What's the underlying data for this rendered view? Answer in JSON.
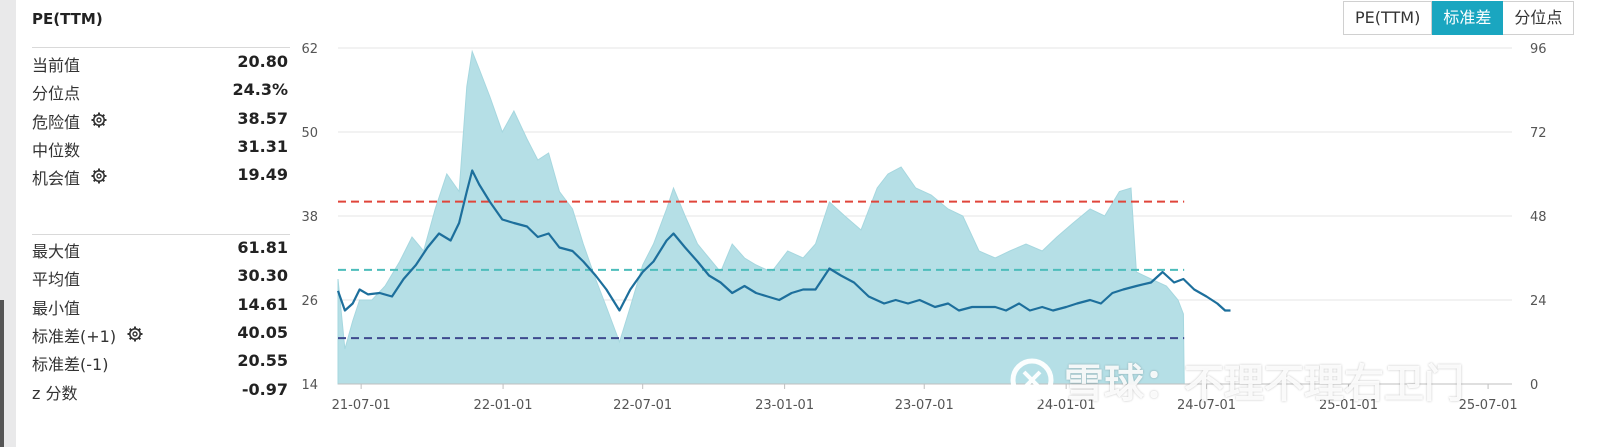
{
  "panel": {
    "title": "PE(TTM)",
    "group1": [
      {
        "label": "当前值",
        "value": "20.80",
        "gear": false
      },
      {
        "label": "分位点",
        "value": "24.3%",
        "gear": false
      },
      {
        "label": "危险值",
        "value": "38.57",
        "gear": true
      },
      {
        "label": "中位数",
        "value": "31.31",
        "gear": false
      },
      {
        "label": "机会值",
        "value": "19.49",
        "gear": true
      }
    ],
    "group2": [
      {
        "label": "最大值",
        "value": "61.81",
        "gear": false
      },
      {
        "label": "平均值",
        "value": "30.30",
        "gear": false
      },
      {
        "label": "最小值",
        "value": "14.61",
        "gear": false
      },
      {
        "label": "标准差(+1)",
        "value": "40.05",
        "gear": true
      },
      {
        "label": "标准差(-1)",
        "value": "20.55",
        "gear": false
      },
      {
        "label": "z 分数",
        "value": "-0.97",
        "gear": false
      }
    ]
  },
  "buttons": [
    {
      "label": "PE(TTM)",
      "active": false
    },
    {
      "label": "标准差",
      "active": true
    },
    {
      "label": "分位点",
      "active": false
    }
  ],
  "watermark": "雪球：不理不理右卫门",
  "chart_data": {
    "type": "line",
    "title": "",
    "x_ticks": [
      "21-07-01",
      "22-01-01",
      "22-07-01",
      "23-01-01",
      "23-07-01",
      "24-01-01",
      "24-07-01",
      "25-01-01",
      "25-07-01"
    ],
    "x_range": [
      "2021-06-01",
      "2025-08-01"
    ],
    "y_left": {
      "ticks": [
        14,
        26,
        38,
        50,
        62
      ],
      "range": [
        14,
        62
      ]
    },
    "y_right": {
      "ticks": [
        0,
        24,
        48,
        72,
        96
      ],
      "range": [
        0,
        96
      ]
    },
    "series": [
      {
        "name": "PE(TTM)",
        "axis": "left",
        "color": "#1d6f9c",
        "points": [
          [
            "2021-06-01",
            27.3
          ],
          [
            "2021-06-10",
            24.5
          ],
          [
            "2021-06-20",
            25.5
          ],
          [
            "2021-06-29",
            27.5
          ],
          [
            "2021-07-10",
            26.8
          ],
          [
            "2021-07-25",
            27.0
          ],
          [
            "2021-08-10",
            26.5
          ],
          [
            "2021-08-25",
            29.0
          ],
          [
            "2021-09-10",
            31.0
          ],
          [
            "2021-09-25",
            33.5
          ],
          [
            "2021-10-10",
            35.5
          ],
          [
            "2021-10-25",
            34.5
          ],
          [
            "2021-11-05",
            37.0
          ],
          [
            "2021-11-15",
            41.5
          ],
          [
            "2021-11-22",
            44.5
          ],
          [
            "2021-12-01",
            42.5
          ],
          [
            "2021-12-15",
            40.0
          ],
          [
            "2021-12-31",
            37.5
          ],
          [
            "2022-01-15",
            37.0
          ],
          [
            "2022-02-01",
            36.5
          ],
          [
            "2022-02-15",
            35.0
          ],
          [
            "2022-03-01",
            35.5
          ],
          [
            "2022-03-15",
            33.5
          ],
          [
            "2022-04-01",
            33.0
          ],
          [
            "2022-04-15",
            31.5
          ],
          [
            "2022-05-01",
            29.5
          ],
          [
            "2022-05-15",
            27.5
          ],
          [
            "2022-06-01",
            24.5
          ],
          [
            "2022-06-15",
            27.5
          ],
          [
            "2022-07-01",
            30.0
          ],
          [
            "2022-07-15",
            31.5
          ],
          [
            "2022-08-01",
            34.5
          ],
          [
            "2022-08-10",
            35.5
          ],
          [
            "2022-08-25",
            33.5
          ],
          [
            "2022-09-10",
            31.5
          ],
          [
            "2022-09-25",
            29.5
          ],
          [
            "2022-10-10",
            28.5
          ],
          [
            "2022-10-25",
            27.0
          ],
          [
            "2022-11-10",
            28.0
          ],
          [
            "2022-11-25",
            27.0
          ],
          [
            "2022-12-10",
            26.5
          ],
          [
            "2022-12-25",
            26.0
          ],
          [
            "2023-01-10",
            27.0
          ],
          [
            "2023-01-25",
            27.5
          ],
          [
            "2023-02-10",
            27.5
          ],
          [
            "2023-02-28",
            30.5
          ],
          [
            "2023-03-15",
            29.5
          ],
          [
            "2023-04-01",
            28.5
          ],
          [
            "2023-04-20",
            26.5
          ],
          [
            "2023-05-10",
            25.5
          ],
          [
            "2023-05-25",
            26.0
          ],
          [
            "2023-06-10",
            25.5
          ],
          [
            "2023-06-25",
            26.0
          ],
          [
            "2023-07-15",
            25.0
          ],
          [
            "2023-08-01",
            25.5
          ],
          [
            "2023-08-15",
            24.5
          ],
          [
            "2023-09-01",
            25.0
          ],
          [
            "2023-09-15",
            25.0
          ],
          [
            "2023-10-01",
            25.0
          ],
          [
            "2023-10-15",
            24.5
          ],
          [
            "2023-11-01",
            25.5
          ],
          [
            "2023-11-15",
            24.5
          ],
          [
            "2023-12-01",
            25.0
          ],
          [
            "2023-12-15",
            24.5
          ],
          [
            "2024-01-01",
            25.0
          ],
          [
            "2024-01-15",
            25.5
          ],
          [
            "2024-02-01",
            26.0
          ],
          [
            "2024-02-15",
            25.5
          ],
          [
            "2024-03-01",
            27.0
          ],
          [
            "2024-03-15",
            27.5
          ],
          [
            "2024-04-01",
            28.0
          ],
          [
            "2024-04-20",
            28.5
          ],
          [
            "2024-05-05",
            30.0
          ],
          [
            "2024-05-20",
            28.5
          ],
          [
            "2024-06-01",
            29.0
          ],
          [
            "2024-06-15",
            27.5
          ],
          [
            "2024-07-01",
            26.5
          ],
          [
            "2024-07-15",
            25.5
          ],
          [
            "2024-07-25",
            24.5
          ],
          [
            "2024-08-01",
            24.5
          ]
        ]
      },
      {
        "name": "",
        "axis": "right",
        "type": "area",
        "color": "#b5dfe6",
        "points": [
          [
            "2021-06-01",
            30
          ],
          [
            "2021-06-10",
            10
          ],
          [
            "2021-06-20",
            18
          ],
          [
            "2021-06-29",
            24
          ],
          [
            "2021-07-15",
            24
          ],
          [
            "2021-08-01",
            28
          ],
          [
            "2021-08-20",
            35
          ],
          [
            "2021-09-05",
            42
          ],
          [
            "2021-09-20",
            38
          ],
          [
            "2021-10-05",
            50
          ],
          [
            "2021-10-20",
            60
          ],
          [
            "2021-11-05",
            55
          ],
          [
            "2021-11-15",
            85
          ],
          [
            "2021-11-22",
            95
          ],
          [
            "2021-12-01",
            90
          ],
          [
            "2021-12-15",
            82
          ],
          [
            "2021-12-31",
            72
          ],
          [
            "2022-01-15",
            78
          ],
          [
            "2022-02-01",
            70
          ],
          [
            "2022-02-15",
            64
          ],
          [
            "2022-03-01",
            66
          ],
          [
            "2022-03-15",
            55
          ],
          [
            "2022-04-01",
            50
          ],
          [
            "2022-04-15",
            40
          ],
          [
            "2022-05-01",
            30
          ],
          [
            "2022-05-15",
            22
          ],
          [
            "2022-06-01",
            12
          ],
          [
            "2022-06-15",
            22
          ],
          [
            "2022-07-01",
            34
          ],
          [
            "2022-07-15",
            40
          ],
          [
            "2022-08-01",
            50
          ],
          [
            "2022-08-10",
            56
          ],
          [
            "2022-08-25",
            48
          ],
          [
            "2022-09-10",
            40
          ],
          [
            "2022-09-25",
            36
          ],
          [
            "2022-10-10",
            32
          ],
          [
            "2022-10-25",
            40
          ],
          [
            "2022-11-10",
            36
          ],
          [
            "2022-11-25",
            34
          ],
          [
            "2022-12-15",
            32
          ],
          [
            "2023-01-05",
            38
          ],
          [
            "2023-01-25",
            36
          ],
          [
            "2023-02-10",
            40
          ],
          [
            "2023-02-28",
            52
          ],
          [
            "2023-03-20",
            48
          ],
          [
            "2023-04-10",
            44
          ],
          [
            "2023-05-01",
            56
          ],
          [
            "2023-05-15",
            60
          ],
          [
            "2023-06-01",
            62
          ],
          [
            "2023-06-20",
            56
          ],
          [
            "2023-07-10",
            54
          ],
          [
            "2023-08-01",
            50
          ],
          [
            "2023-08-20",
            48
          ],
          [
            "2023-09-10",
            38
          ],
          [
            "2023-10-01",
            36
          ],
          [
            "2023-10-20",
            38
          ],
          [
            "2023-11-10",
            40
          ],
          [
            "2023-12-01",
            38
          ],
          [
            "2023-12-20",
            42
          ],
          [
            "2024-01-10",
            46
          ],
          [
            "2024-02-01",
            50
          ],
          [
            "2024-02-20",
            48
          ],
          [
            "2024-03-10",
            55
          ],
          [
            "2024-03-25",
            56
          ],
          [
            "2024-04-01",
            32
          ],
          [
            "2024-04-20",
            30
          ],
          [
            "2024-05-10",
            28
          ],
          [
            "2024-05-25",
            24
          ],
          [
            "2024-06-01",
            20
          ],
          [
            "2024-06-02",
            0
          ]
        ]
      }
    ],
    "reference_lines": [
      {
        "name": "",
        "value": 40.05,
        "axis": "left",
        "color": "#e0453a",
        "style": "dashed"
      },
      {
        "name": "",
        "value": 30.3,
        "axis": "left",
        "color": "#4dbdbb",
        "style": "dashed"
      },
      {
        "name": "",
        "value": 20.55,
        "axis": "left",
        "color": "#3e4a8e",
        "style": "dashed"
      }
    ],
    "grid": true
  }
}
